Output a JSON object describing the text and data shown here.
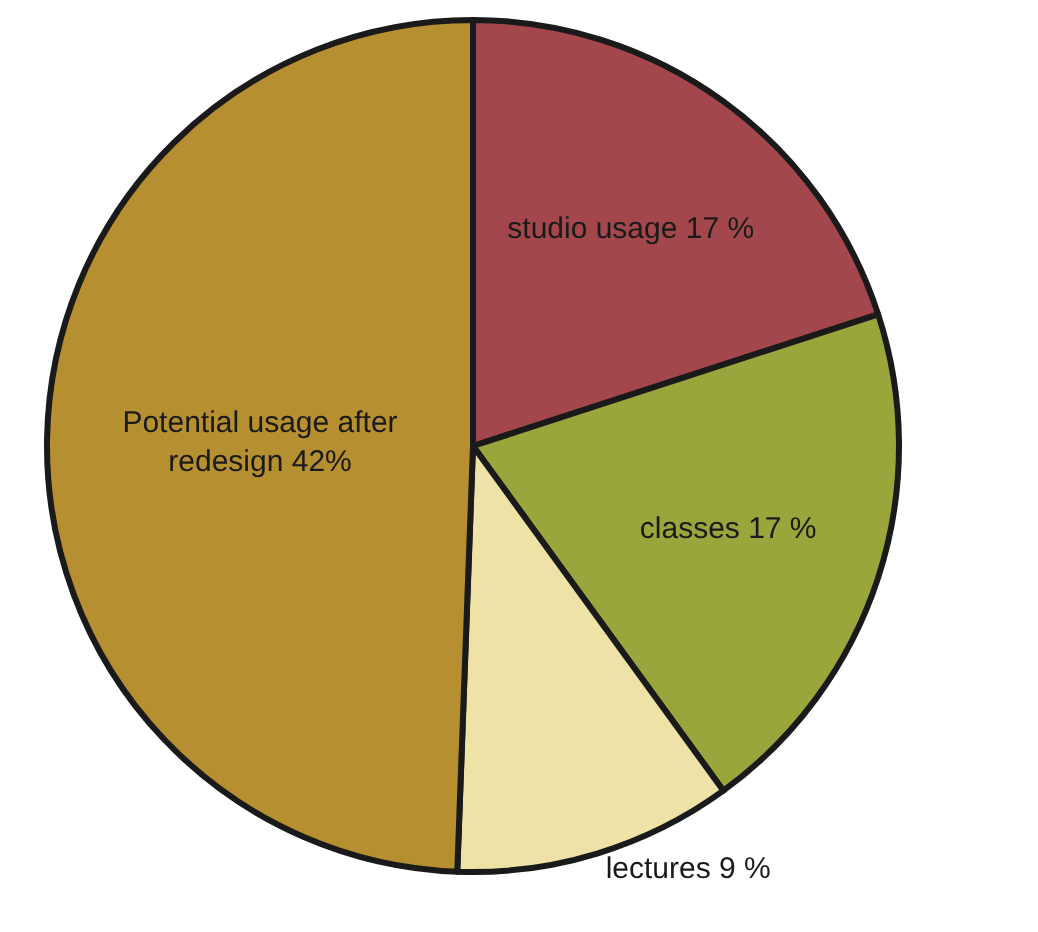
{
  "chart_data": {
    "type": "pie",
    "categories": [
      "studio usage",
      "classes",
      "lectures",
      "Potential usage after redesign"
    ],
    "values": [
      17,
      17,
      9,
      42
    ],
    "value_labels": [
      "17 %",
      "17 %",
      "9 %",
      "42%"
    ],
    "colors": [
      "#a3474c",
      "#9aa53c",
      "#efe2a6",
      "#b58f30"
    ],
    "legend": false
  }
}
